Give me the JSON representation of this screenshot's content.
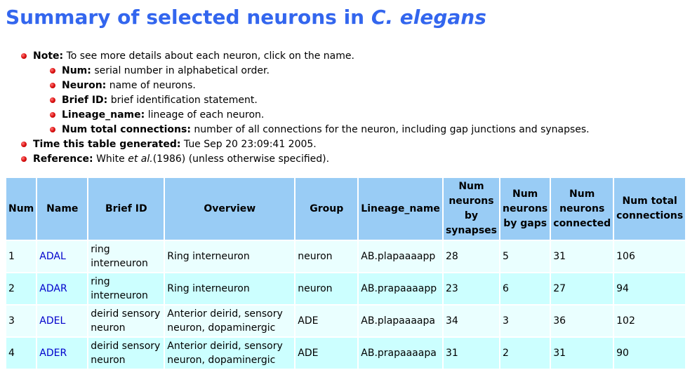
{
  "header": {
    "title_prefix": "Summary of selected neurons in ",
    "title_species": "C. elegans"
  },
  "notes": {
    "note_label": "Note:",
    "note_text": " To see more details about each neuron, click on the name.",
    "sub_items": [
      {
        "label": "Num:",
        "text": " serial number in alphabetical order."
      },
      {
        "label": "Neuron:",
        "text": " name of neurons."
      },
      {
        "label": "Brief ID:",
        "text": " brief identification statement."
      },
      {
        "label": "Lineage_name:",
        "text": " lineage of each neuron."
      },
      {
        "label": "Num total connections:",
        "text": " number of all connections for the neuron, including gap junctions and synapses."
      }
    ],
    "time_label": "Time this table generated:",
    "time_text": " Tue Sep 20 23:09:41 2005.",
    "ref_label": "Reference:",
    "ref_text_a": " White ",
    "ref_text_em": "et al.",
    "ref_text_b": "(1986) (unless otherwise specified)."
  },
  "table": {
    "headers": {
      "num": "Num",
      "name": "Name",
      "brief_id": "Brief ID",
      "overview": "Overview",
      "group": "Group",
      "lineage": "Lineage_name",
      "synapses_1": "Num",
      "synapses_2": "neurons",
      "synapses_3": "by",
      "synapses_4": "synapses",
      "gaps_1": "Num",
      "gaps_2": "neurons",
      "gaps_3": "by gaps",
      "connected_1": "Num",
      "connected_2": "neurons",
      "connected_3": "connected",
      "total_1": "Num total",
      "total_2": "connections"
    },
    "rows": [
      {
        "num": "1",
        "name": "ADAL",
        "brief_a": "ring",
        "brief_b": "interneuron",
        "overview_a": "Ring interneuron",
        "overview_b": "",
        "group": "neuron",
        "lineage": "AB.plapaaaapp",
        "synapses": "28",
        "gaps": "5",
        "connected": "31",
        "total": "106"
      },
      {
        "num": "2",
        "name": "ADAR",
        "brief_a": "ring",
        "brief_b": "interneuron",
        "overview_a": "Ring interneuron",
        "overview_b": "",
        "group": "neuron",
        "lineage": "AB.prapaaaapp",
        "synapses": "23",
        "gaps": "6",
        "connected": "27",
        "total": "94"
      },
      {
        "num": "3",
        "name": "ADEL",
        "brief_a": "deirid sensory",
        "brief_b": "neuron",
        "overview_a": "Anterior deirid, sensory",
        "overview_b": "neuron, dopaminergic",
        "group": "ADE",
        "lineage": "AB.plapaaaapa",
        "synapses": "34",
        "gaps": "3",
        "connected": "36",
        "total": "102"
      },
      {
        "num": "4",
        "name": "ADER",
        "brief_a": "deirid sensory",
        "brief_b": "neuron",
        "overview_a": "Anterior deirid, sensory",
        "overview_b": "neuron, dopaminergic",
        "group": "ADE",
        "lineage": "AB.prapaaaapa",
        "synapses": "31",
        "gaps": "2",
        "connected": "31",
        "total": "90"
      }
    ]
  }
}
